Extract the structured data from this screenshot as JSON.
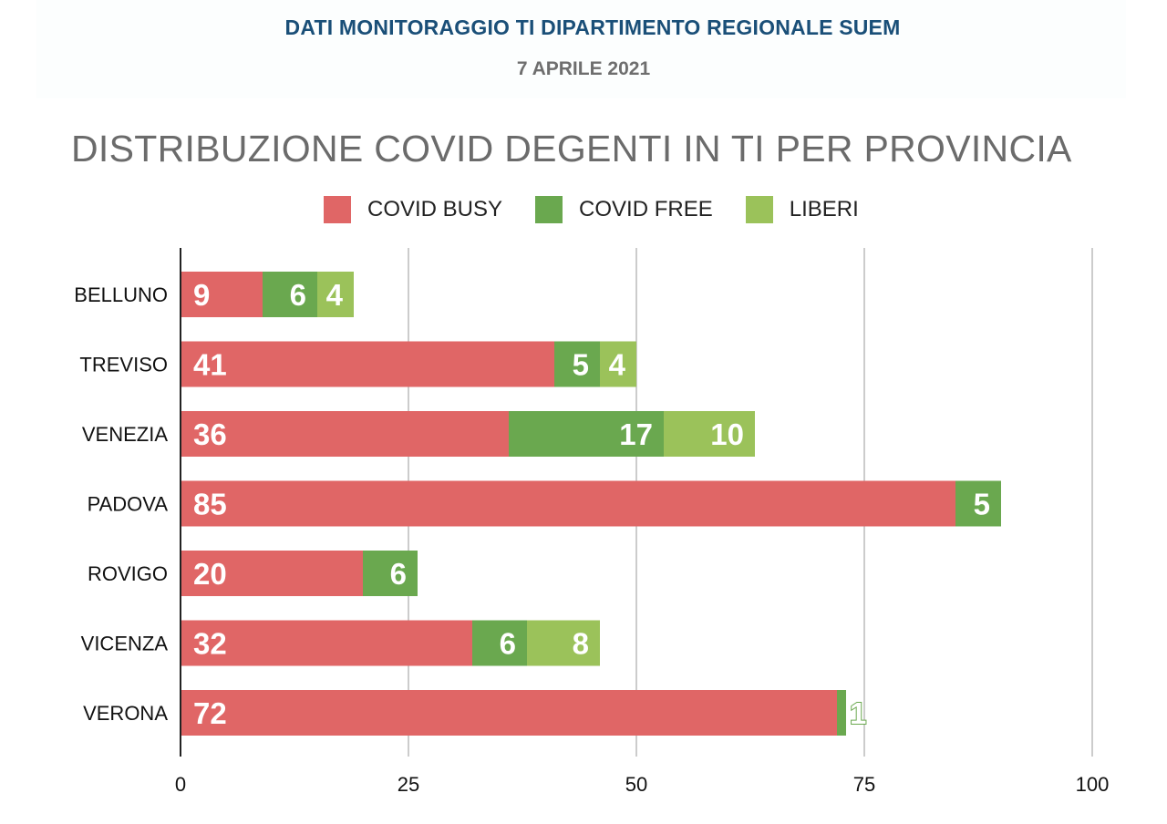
{
  "header": {
    "title": "DATI MONITORAGGIO TI DIPARTIMENTO REGIONALE SUEM",
    "date": "7 APRILE 2021"
  },
  "colors": {
    "covid_busy": "#e06666",
    "covid_free": "#6aa84f",
    "liberi": "#9bc25a",
    "grid": "#cccccc",
    "axis": "#222222"
  },
  "chart_data": {
    "type": "bar",
    "orientation": "horizontal",
    "stacked": true,
    "title": "DISTRIBUZIONE COVID DEGENTI IN TI PER PROVINCIA",
    "categories": [
      "BELLUNO",
      "TREVISO",
      "VENEZIA",
      "PADOVA",
      "ROVIGO",
      "VICENZA",
      "VERONA"
    ],
    "series": [
      {
        "name": "COVID BUSY",
        "values": [
          9,
          41,
          36,
          85,
          20,
          32,
          72
        ]
      },
      {
        "name": "COVID FREE",
        "values": [
          6,
          5,
          17,
          5,
          6,
          6,
          1
        ]
      },
      {
        "name": "LIBERI",
        "values": [
          4,
          4,
          10,
          0,
          0,
          8,
          0
        ]
      }
    ],
    "xlim": [
      0,
      100
    ],
    "xticks": [
      "0",
      "25",
      "50",
      "75",
      "100"
    ],
    "grid": true,
    "legend_position": "top"
  }
}
